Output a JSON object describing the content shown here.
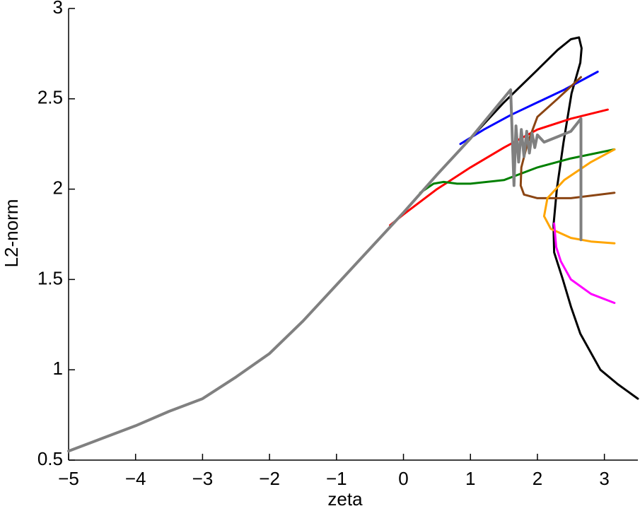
{
  "chart_data": {
    "type": "line",
    "xlabel": "zeta",
    "ylabel": "L2-norm",
    "xlim": [
      -5,
      3.5
    ],
    "ylim": [
      0.5,
      3
    ],
    "xticks": [
      {
        "value": -5,
        "label": "−5"
      },
      {
        "value": -4,
        "label": "−4"
      },
      {
        "value": -3,
        "label": "−3"
      },
      {
        "value": -2,
        "label": "−2"
      },
      {
        "value": -1,
        "label": "−1"
      },
      0,
      1,
      2,
      3
    ],
    "yticks": [
      0.5,
      1,
      1.5,
      2,
      2.5,
      3
    ],
    "series": [
      {
        "color": "#000000",
        "width": 3,
        "x": [
          -5,
          -4.5,
          -4,
          -3.5,
          -3,
          -2.5,
          -2,
          -1.5,
          -1,
          -0.5,
          0,
          0.5,
          1,
          1.5,
          2,
          2.3,
          2.5,
          2.62,
          2.66,
          2.64,
          2.51,
          2.39,
          2.29,
          2.24,
          2.25,
          2.38,
          2.5,
          2.64,
          2.94,
          3.2,
          3.5
        ],
        "values": [
          0.55,
          0.62,
          0.69,
          0.77,
          0.84,
          0.96,
          1.09,
          1.27,
          1.47,
          1.67,
          1.87,
          2.08,
          2.28,
          2.48,
          2.66,
          2.77,
          2.83,
          2.84,
          2.78,
          2.7,
          2.53,
          2.26,
          2.0,
          1.8,
          1.65,
          1.5,
          1.35,
          1.2,
          1.0,
          0.92,
          0.84
        ]
      },
      {
        "color": "#0000ff",
        "width": 3,
        "x": [
          0.85,
          1.2,
          1.6,
          2.0,
          2.4,
          2.9
        ],
        "values": [
          2.25,
          2.33,
          2.41,
          2.48,
          2.55,
          2.65
        ]
      },
      {
        "color": "#ff0000",
        "width": 3,
        "x": [
          -0.2,
          0,
          0.5,
          1,
          1.5,
          2,
          2.5,
          3.05
        ],
        "values": [
          1.8,
          1.86,
          2.0,
          2.12,
          2.23,
          2.33,
          2.39,
          2.44
        ]
      },
      {
        "color": "#008000",
        "width": 3,
        "x": [
          0.25,
          0.45,
          0.6,
          0.8,
          1,
          1.5,
          2,
          2.5,
          3.15
        ],
        "values": [
          1.98,
          2.03,
          2.04,
          2.03,
          2.03,
          2.05,
          2.12,
          2.17,
          2.22
        ]
      },
      {
        "color": "#8b4513",
        "width": 3,
        "x": [
          2.65,
          2.3,
          2.0,
          1.85,
          1.76,
          1.75,
          1.8,
          2.0,
          2.5,
          3.15
        ],
        "values": [
          2.62,
          2.5,
          2.4,
          2.25,
          2.12,
          2.02,
          1.97,
          1.95,
          1.95,
          1.98
        ]
      },
      {
        "color": "#ffa500",
        "width": 3,
        "x": [
          3.15,
          2.8,
          2.4,
          2.15,
          2.1,
          2.2,
          2.5,
          2.8,
          3.15
        ],
        "values": [
          2.22,
          2.15,
          2.05,
          1.95,
          1.85,
          1.78,
          1.73,
          1.71,
          1.7
        ]
      },
      {
        "color": "#ff00ff",
        "width": 3,
        "x": [
          2.25,
          2.28,
          2.35,
          2.5,
          2.8,
          3.15
        ],
        "values": [
          1.81,
          1.68,
          1.6,
          1.5,
          1.42,
          1.37
        ]
      },
      {
        "color": "#808080",
        "width": 4,
        "x": [
          -5,
          -4.5,
          -4,
          -3.5,
          -3,
          -2.5,
          -2,
          -1.5,
          -1,
          -0.5,
          0,
          0.5,
          1,
          1.6,
          1.65,
          1.68,
          1.72,
          1.76,
          1.8,
          1.84,
          1.88,
          1.92,
          1.96,
          2.0,
          2.1,
          2.3,
          2.5,
          2.65,
          2.65
        ],
        "values": [
          0.55,
          0.62,
          0.69,
          0.77,
          0.84,
          0.96,
          1.09,
          1.27,
          1.47,
          1.67,
          1.87,
          2.08,
          2.28,
          2.55,
          2.02,
          2.35,
          2.15,
          2.33,
          2.18,
          2.32,
          2.2,
          2.31,
          2.23,
          2.3,
          2.26,
          2.29,
          2.32,
          2.39,
          1.72
        ]
      }
    ]
  }
}
